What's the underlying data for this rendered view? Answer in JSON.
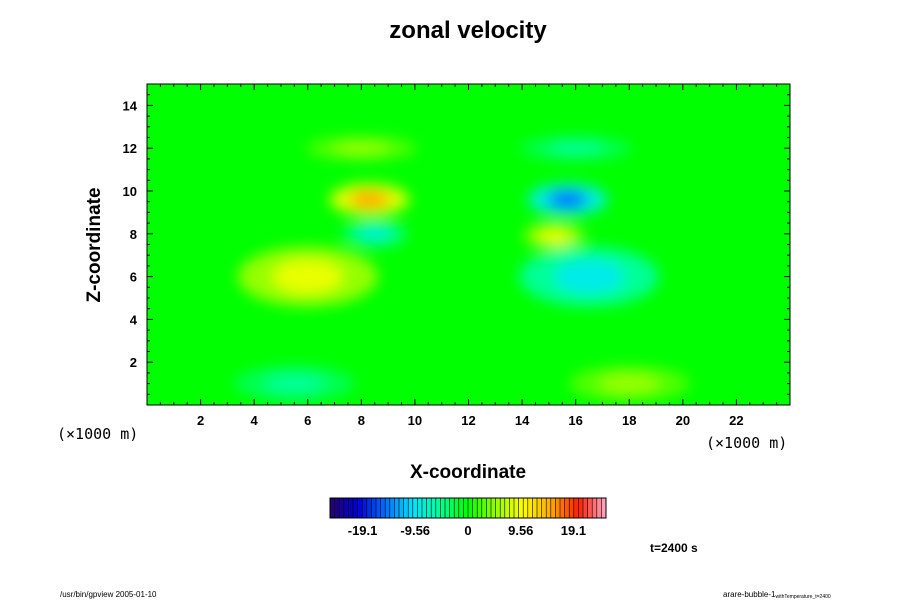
{
  "chart_data": {
    "type": "heatmap",
    "title": "zonal velocity",
    "xlabel": "X-coordinate",
    "ylabel": "Z-coordinate",
    "x_unit": "(×1000 m)",
    "y_unit": "(×1000 m)",
    "xlim": [
      0,
      24
    ],
    "ylim": [
      0,
      15
    ],
    "x_ticks": [
      2,
      4,
      6,
      8,
      10,
      12,
      14,
      16,
      18,
      20,
      22
    ],
    "y_ticks": [
      2,
      4,
      6,
      8,
      10,
      12,
      14
    ],
    "x_tick_labels": [
      "2",
      "4",
      "6",
      "8",
      "10",
      "12",
      "14",
      "16",
      "18",
      "20",
      "22"
    ],
    "y_tick_labels": [
      "2",
      "4",
      "6",
      "8",
      "10",
      "12",
      "14"
    ],
    "colorbar": {
      "min": -25,
      "max": 25,
      "tick_values": [
        -19.1,
        -9.56,
        0,
        9.56,
        19.1
      ],
      "tick_labels": [
        "-19.1",
        "-9.56",
        "0",
        "9.56",
        "19.1"
      ]
    },
    "features": [
      {
        "x": 8.3,
        "z": 9.6,
        "value": 15
      },
      {
        "x": 15.7,
        "z": 9.6,
        "value": -15
      },
      {
        "x": 8.5,
        "z": 8.0,
        "value": -8
      },
      {
        "x": 15.2,
        "z": 7.9,
        "value": 9
      },
      {
        "x": 6.0,
        "z": 6.0,
        "value": 9
      },
      {
        "x": 16.5,
        "z": 6.0,
        "value": -9
      },
      {
        "x": 5.5,
        "z": 1.0,
        "value": -5
      },
      {
        "x": 18.0,
        "z": 1.0,
        "value": 5
      },
      {
        "x": 8.0,
        "z": 12.0,
        "value": 5
      },
      {
        "x": 16.0,
        "z": 12.0,
        "value": -5
      }
    ],
    "time_label": "t=2400 s"
  },
  "footer": {
    "left": "/usr/bin/gpview 2005-01-10",
    "right_main": "arare-bubble-1",
    "right_sub": "withTemperature_t=2400"
  }
}
